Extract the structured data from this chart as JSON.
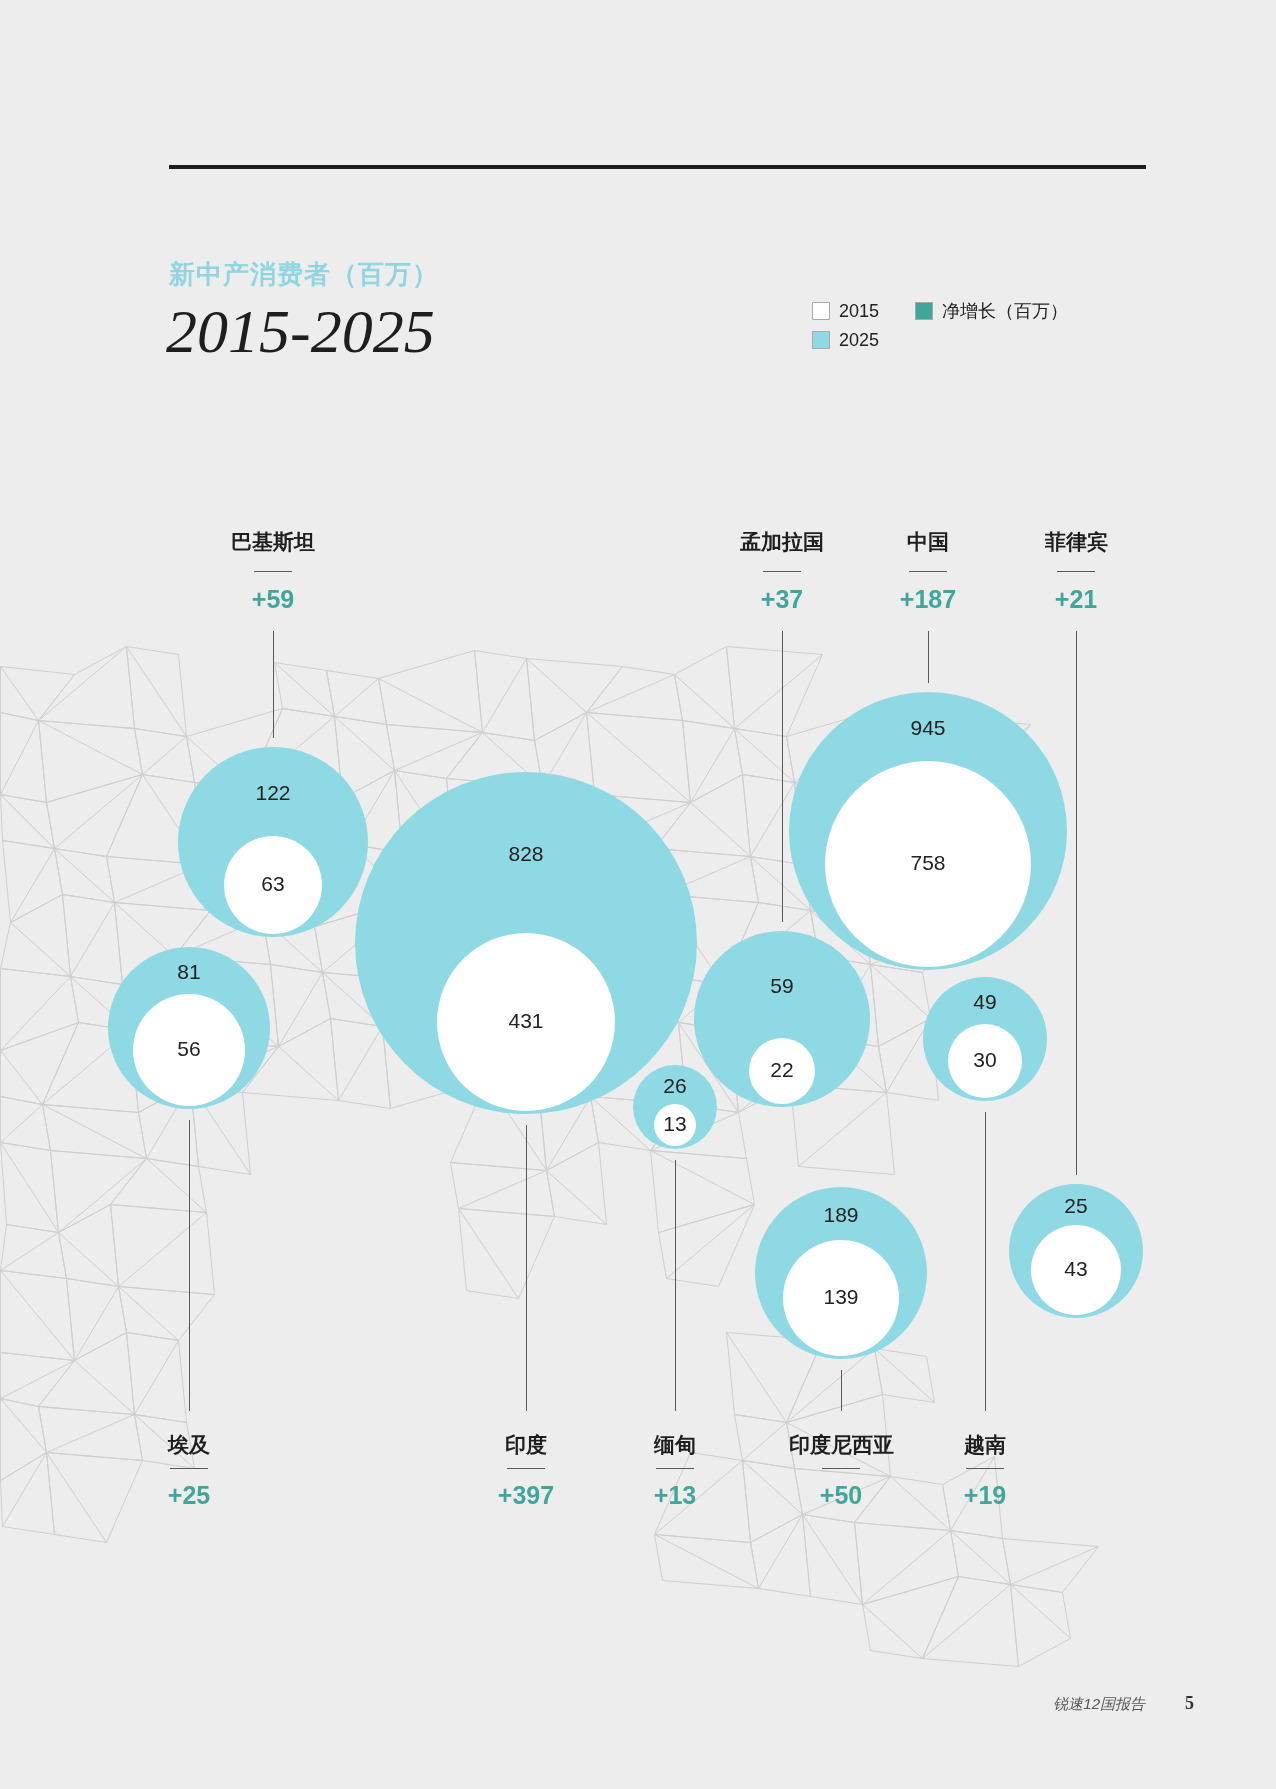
{
  "chart_data": {
    "type": "other",
    "title": "新中产消费者（百万）",
    "subtitle": "2015-2025",
    "categories": [
      "巴基斯坦",
      "孟加拉国",
      "中国",
      "菲律宾",
      "埃及",
      "印度",
      "缅甸",
      "印度尼西亚",
      "越南"
    ],
    "series": [
      {
        "name": "2015",
        "color": "#ffffff",
        "values": [
          63,
          22,
          758,
          43,
          56,
          431,
          13,
          139,
          30
        ]
      },
      {
        "name": "2025",
        "color": "#8ed9e3",
        "values": [
          122,
          59,
          945,
          25,
          81,
          828,
          26,
          189,
          49
        ]
      },
      {
        "name": "净增长（百万）",
        "color": "#40a69a",
        "values": [
          59,
          37,
          187,
          21,
          25,
          397,
          13,
          50,
          19
        ],
        "value_labels": [
          "+59",
          "+37",
          "+187",
          "+21",
          "+25",
          "+397",
          "+13",
          "+50",
          "+19"
        ]
      }
    ],
    "data_labels": true,
    "legend": "top right",
    "annotations": [
      "锐速12国报告",
      "5"
    ]
  }
}
